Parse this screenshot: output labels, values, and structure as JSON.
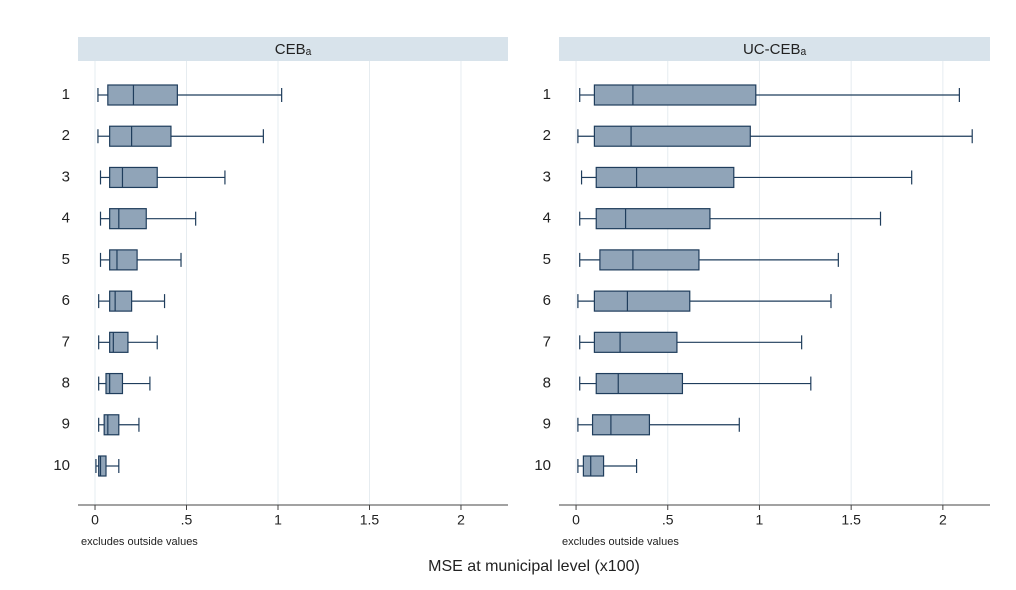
{
  "chart_data": [
    {
      "type": "box",
      "title": "CEBₐ",
      "note": "excludes outside values",
      "categories": [
        "1",
        "2",
        "3",
        "4",
        "5",
        "6",
        "7",
        "8",
        "9",
        "10"
      ],
      "whislo": [
        0.016,
        0.016,
        0.03,
        0.03,
        0.03,
        0.02,
        0.02,
        0.02,
        0.02,
        0.005
      ],
      "q1": [
        0.07,
        0.08,
        0.08,
        0.08,
        0.08,
        0.08,
        0.08,
        0.06,
        0.05,
        0.02
      ],
      "med": [
        0.21,
        0.2,
        0.15,
        0.13,
        0.12,
        0.11,
        0.1,
        0.08,
        0.07,
        0.03
      ],
      "q3": [
        0.45,
        0.415,
        0.34,
        0.28,
        0.23,
        0.2,
        0.18,
        0.15,
        0.13,
        0.06
      ],
      "whishi": [
        1.02,
        0.92,
        0.71,
        0.55,
        0.47,
        0.38,
        0.34,
        0.3,
        0.24,
        0.13
      ],
      "color": "#90a4b8",
      "line_color": "#1f3d5c",
      "xlim": [
        -0.093,
        2.257
      ],
      "xticks": [
        0,
        {
          "value": 0.5,
          "label": ".5"
        },
        1,
        1.5,
        2
      ],
      "grid": true
    },
    {
      "type": "box",
      "title": "UC-CEBₐ",
      "note": "excludes outside values",
      "categories": [
        "1",
        "2",
        "3",
        "4",
        "5",
        "6",
        "7",
        "8",
        "9",
        "10"
      ],
      "whislo": [
        0.02,
        0.01,
        0.03,
        0.02,
        0.02,
        0.01,
        0.02,
        0.02,
        0.01,
        0.01
      ],
      "q1": [
        0.1,
        0.1,
        0.11,
        0.11,
        0.13,
        0.1,
        0.1,
        0.11,
        0.09,
        0.04
      ],
      "med": [
        0.31,
        0.3,
        0.33,
        0.27,
        0.31,
        0.28,
        0.24,
        0.23,
        0.19,
        0.08
      ],
      "q3": [
        0.98,
        0.95,
        0.86,
        0.73,
        0.67,
        0.62,
        0.55,
        0.58,
        0.4,
        0.15
      ],
      "whishi": [
        2.09,
        2.16,
        1.83,
        1.66,
        1.43,
        1.39,
        1.23,
        1.28,
        0.89,
        0.33
      ],
      "color": "#90a4b8",
      "line_color": "#1f3d5c",
      "xlim": [
        -0.093,
        2.257
      ],
      "xticks": [
        0,
        {
          "value": 0.5,
          "label": ".5"
        },
        1,
        1.5,
        2
      ],
      "grid": true
    }
  ],
  "x_label": "MSE at municipal level (x100)"
}
